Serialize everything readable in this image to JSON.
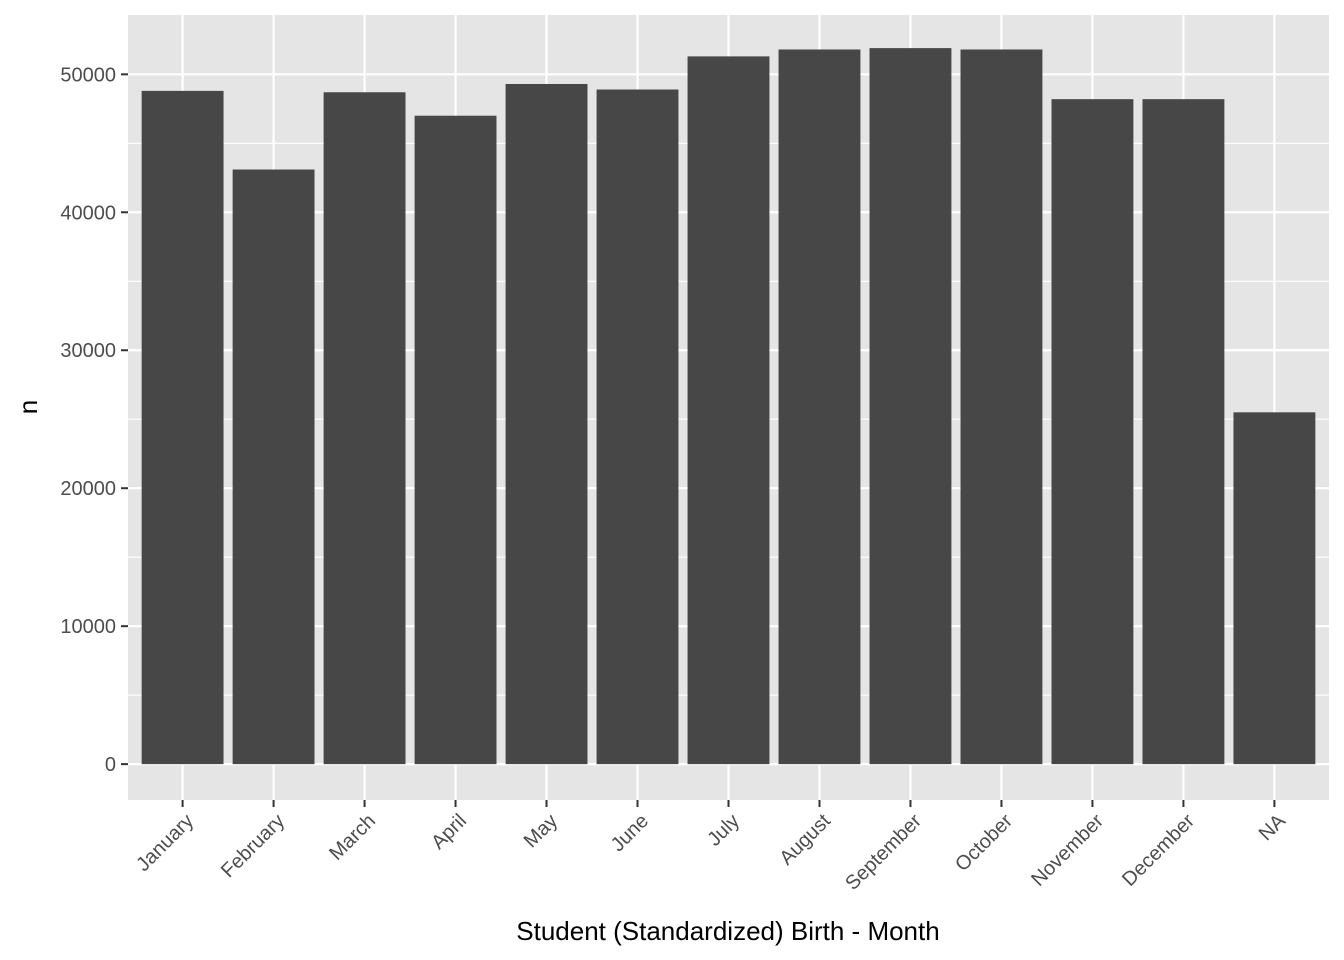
{
  "chart_data": {
    "type": "bar",
    "title": "",
    "xlabel": "Student (Standardized) Birth - Month",
    "ylabel": "n",
    "categories": [
      "January",
      "February",
      "March",
      "April",
      "May",
      "June",
      "July",
      "August",
      "September",
      "October",
      "November",
      "December",
      "NA"
    ],
    "values": [
      48800,
      43100,
      48700,
      47000,
      49300,
      48900,
      51300,
      51800,
      51900,
      51800,
      48200,
      48200,
      25500
    ],
    "ylim": [
      -2600,
      54300
    ],
    "yticks": [
      0,
      10000,
      20000,
      30000,
      40000,
      50000
    ],
    "ytick_labels": [
      "0",
      "10000",
      "20000",
      "30000",
      "40000",
      "50000"
    ],
    "grid": true,
    "legend": "none",
    "colors": {
      "panel_background": "#e5e5e5",
      "grid_major": "#ffffff",
      "bar_fill": "#474747",
      "tick_mark": "#333333"
    }
  }
}
